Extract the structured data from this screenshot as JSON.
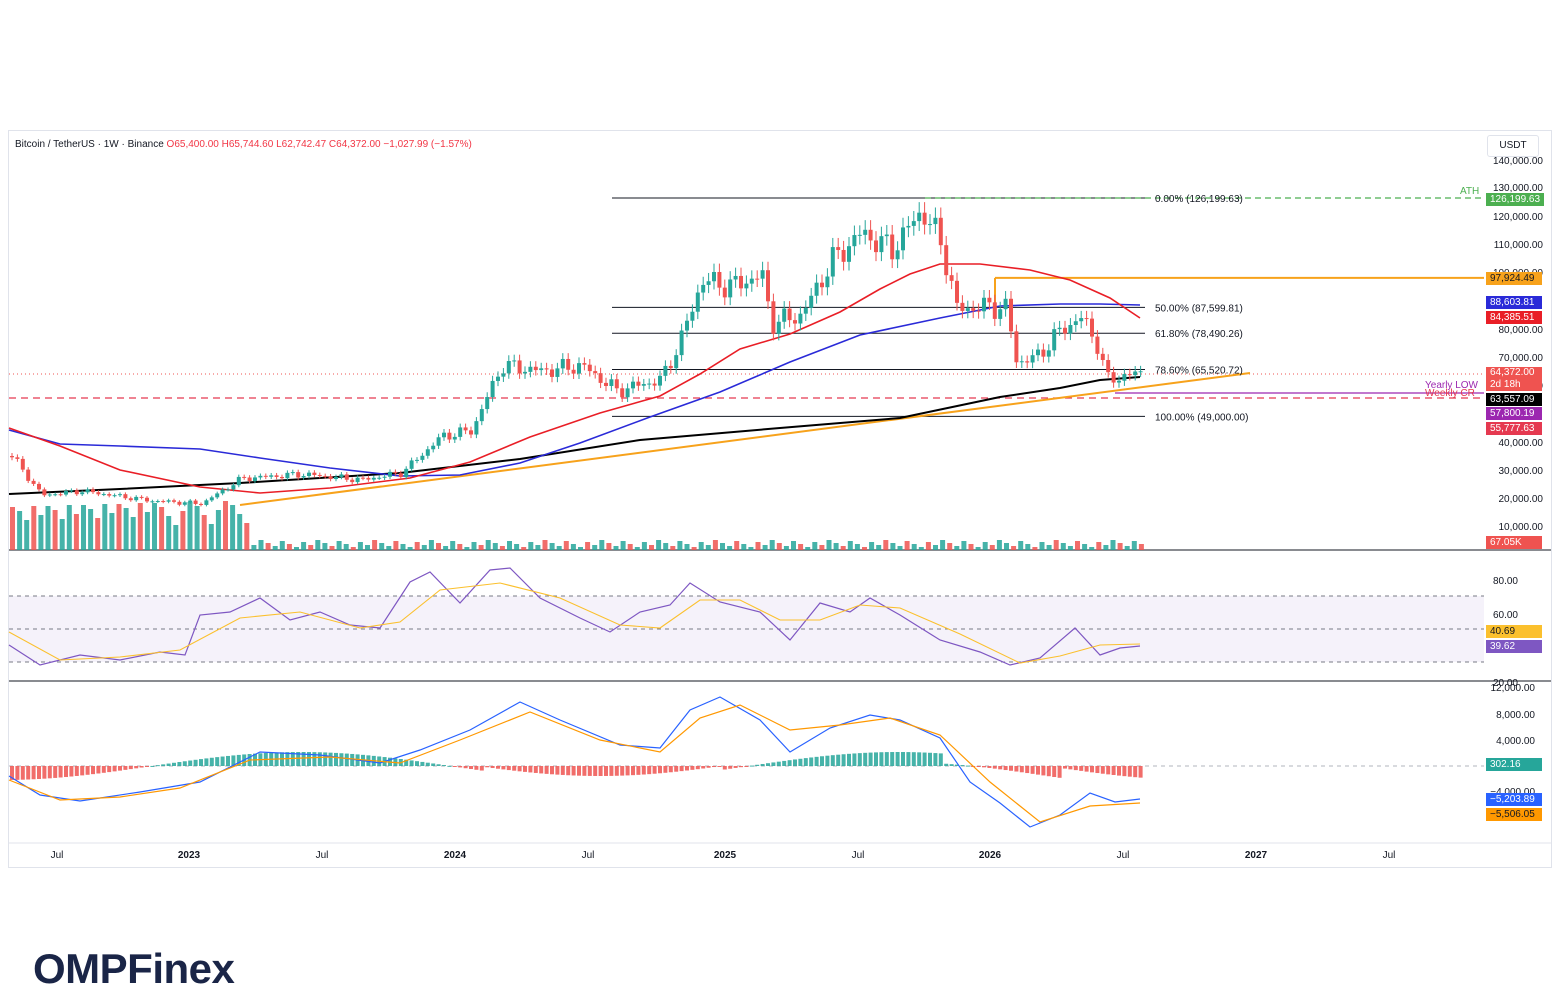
{
  "header": {
    "symbol": "Bitcoin / TetherUS · 1W · Binance",
    "ohlc": "O65,400.00  H65,744.60  L62,742.47  C64,372.00  −1,027.99 (−1.57%)"
  },
  "currency_label": "USDT",
  "price_axis": {
    "ticks": [
      "140,000.00",
      "130,000.00",
      "120,000.00",
      "110,000.00",
      "100,000.00",
      "80,000.00",
      "70,000.00",
      "60,000.00",
      "40,000.00",
      "30,000.00",
      "20,000.00",
      "10,000.00"
    ]
  },
  "rsi_axis": {
    "ticks": [
      "80.00",
      "60.00",
      "20.00"
    ]
  },
  "macd_axis": {
    "ticks": [
      "12,000.00",
      "8,000.00",
      "4,000.00",
      "−4,000.00"
    ]
  },
  "time_axis": {
    "labels": [
      "Jul",
      "2023",
      "Jul",
      "2024",
      "Jul",
      "2025",
      "Jul",
      "2026",
      "Jul",
      "2027",
      "Jul"
    ]
  },
  "annotations": {
    "ath": "ATH",
    "fib_0": "0.00% (126,199.63)",
    "fib_50": "50.00% (87,599.81)",
    "fib_618": "61.80% (78,490.26)",
    "fib_786": "78.60% (65,520.72)",
    "fib_100": "100.00% (49,000.00)",
    "yearly_low": "Yearly LOW",
    "weekly_cr": "Weekly CR"
  },
  "price_tags": {
    "ath": "126,199.63",
    "orange_level": "97,924.49",
    "ma_blue": "88,603.81",
    "ma_red": "84,385.51",
    "last": "64,372.00",
    "countdown": "2d 18h",
    "ma_black": "63,557.09",
    "purple": "57,800.19",
    "red_dashed": "55,777.63",
    "volume": "67.05K",
    "rsi_ma": "40.69",
    "rsi": "39.62",
    "macd_hist": "302.16",
    "macd_line": "−5,203.89",
    "macd_signal": "−5,506.05"
  },
  "colors": {
    "up": "#26a69a",
    "down": "#ef5350",
    "ma_red": "#e91e26",
    "ma_blue": "#2a2ad8",
    "ma_black": "#000000",
    "trend_orange": "#f7a21b",
    "ath_green": "#4caf50",
    "purple": "#9c27b0",
    "rsi_line": "#7e57c2",
    "rsi_ma": "#fbc02d"
  },
  "brand": "OMPFinex"
}
